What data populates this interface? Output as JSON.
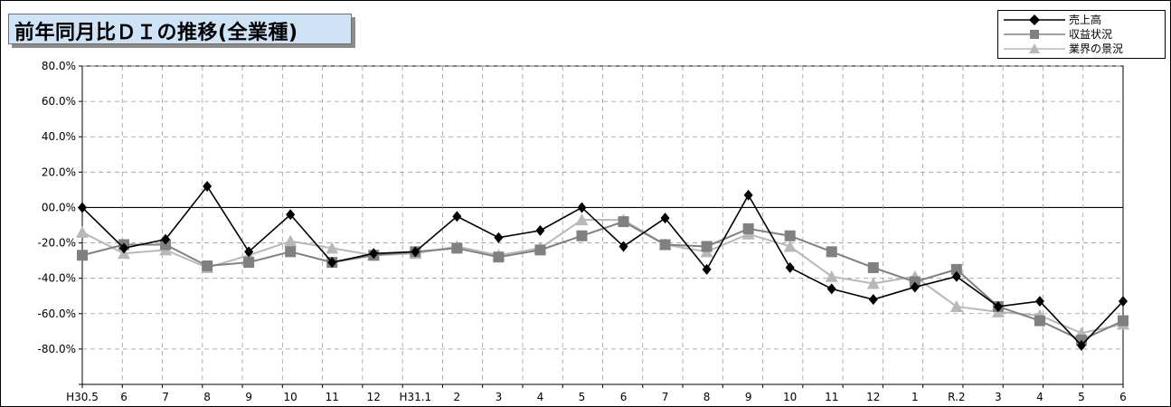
{
  "title": "前年同月比ＤＩの推移(全業種)",
  "chart_data": {
    "type": "line",
    "title": "前年同月比ＤＩの推移(全業種)",
    "categories": [
      "H30.5",
      "6",
      "7",
      "8",
      "9",
      "10",
      "11",
      "12",
      "H31.1",
      "2",
      "3",
      "4",
      "5",
      "6",
      "7",
      "8",
      "9",
      "10",
      "11",
      "12",
      "1",
      "R.2",
      "3",
      "4",
      "5",
      "6"
    ],
    "y_tick_labels": [
      "80.0%",
      "60.0%",
      "40.0%",
      "20.0%",
      "00.0%",
      "-20.0%",
      "-40.0%",
      "-60.0%",
      "-80.0%"
    ],
    "y_ticks": [
      80,
      60,
      40,
      20,
      0,
      -20,
      -40,
      -60,
      -80
    ],
    "ylim": [
      -100,
      80
    ],
    "grid": true,
    "legend_position": "top-right",
    "series": [
      {
        "name": "売上高",
        "color": "#000000",
        "marker": "diamond",
        "values": [
          0,
          -23,
          -18,
          12,
          -25,
          -4,
          -31,
          -26,
          -25,
          -5,
          -17,
          -13,
          0,
          -22,
          -6,
          -35,
          7,
          -34,
          -46,
          -52,
          -45,
          -39,
          -56,
          -53,
          -78,
          -53
        ]
      },
      {
        "name": "収益状況",
        "color": "#808080",
        "marker": "square",
        "values": [
          -27,
          -21,
          -21,
          -33,
          -31,
          -25,
          -31,
          -27,
          -25,
          -23,
          -28,
          -24,
          -16,
          -8,
          -21,
          -22,
          -12,
          -16,
          -25,
          -34,
          -42,
          -35,
          -56,
          -64,
          -75,
          -64
        ]
      },
      {
        "name": "業界の景況",
        "color": "#b8b8b8",
        "marker": "triangle",
        "values": [
          -14,
          -26,
          -24,
          -34,
          -27,
          -19,
          -23,
          -27,
          -26,
          -22,
          -27,
          -23,
          -7,
          -7,
          -21,
          -25,
          -15,
          -22,
          -39,
          -43,
          -39,
          -56,
          -59,
          -61,
          -71,
          -66
        ]
      }
    ]
  }
}
